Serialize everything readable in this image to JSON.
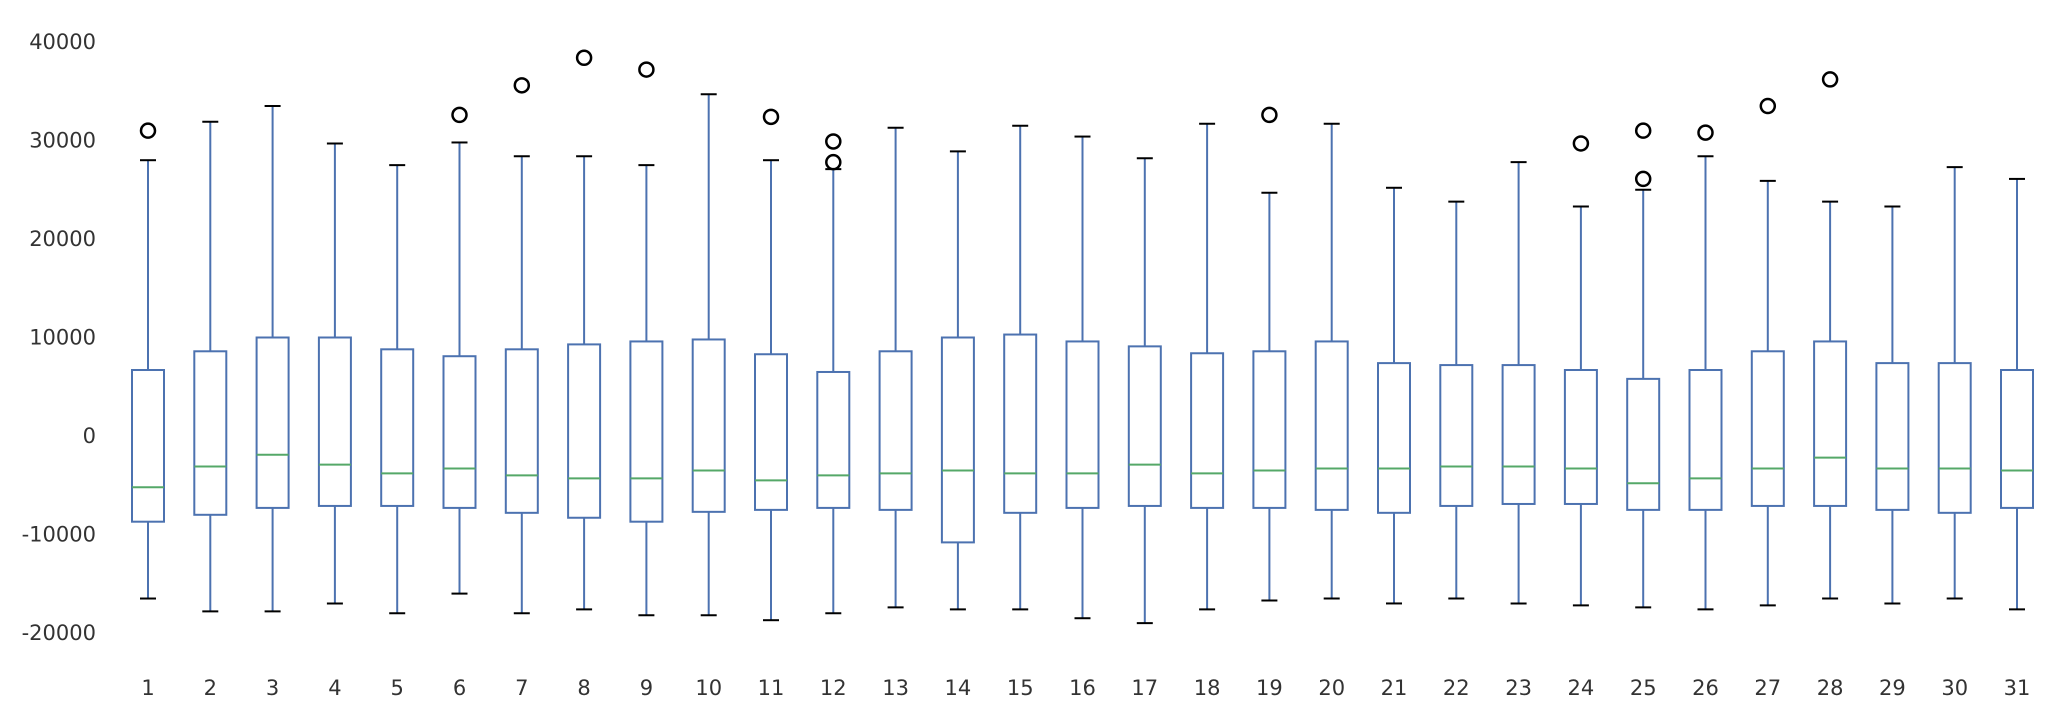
{
  "chart_data": {
    "type": "box",
    "title": "",
    "xlabel": "",
    "ylabel": "",
    "grid": false,
    "ylim": [
      -25000,
      42000
    ],
    "yticks": [
      -20000,
      -10000,
      0,
      10000,
      20000,
      30000,
      40000
    ],
    "ytick_labels": [
      "-20000",
      "-10000",
      "0",
      "10000",
      "20000",
      "30000",
      "40000"
    ],
    "categories": [
      "1",
      "2",
      "3",
      "4",
      "5",
      "6",
      "7",
      "8",
      "9",
      "10",
      "11",
      "12",
      "13",
      "14",
      "15",
      "16",
      "17",
      "18",
      "19",
      "20",
      "21",
      "22",
      "23",
      "24",
      "25",
      "26",
      "27",
      "28",
      "29",
      "30",
      "31"
    ],
    "colors": {
      "box": "#4c72b0",
      "median": "#55a868",
      "cap": "#000000",
      "flier": "#000000"
    },
    "boxes": [
      {
        "whislo": -16500,
        "q1": -8700,
        "med": -5200,
        "q3": 6700,
        "whishi": 28000,
        "fliers": [
          31000
        ]
      },
      {
        "whislo": -17800,
        "q1": -8000,
        "med": -3100,
        "q3": 8600,
        "whishi": 31900,
        "fliers": []
      },
      {
        "whislo": -17800,
        "q1": -7300,
        "med": -1900,
        "q3": 10000,
        "whishi": 33500,
        "fliers": []
      },
      {
        "whislo": -17000,
        "q1": -7100,
        "med": -2900,
        "q3": 10000,
        "whishi": 29700,
        "fliers": []
      },
      {
        "whislo": -18000,
        "q1": -7100,
        "med": -3800,
        "q3": 8800,
        "whishi": 27500,
        "fliers": []
      },
      {
        "whislo": -16000,
        "q1": -7300,
        "med": -3300,
        "q3": 8100,
        "whishi": 29800,
        "fliers": [
          32600
        ]
      },
      {
        "whislo": -18000,
        "q1": -7800,
        "med": -4000,
        "q3": 8800,
        "whishi": 28400,
        "fliers": [
          35600
        ]
      },
      {
        "whislo": -17600,
        "q1": -8300,
        "med": -4300,
        "q3": 9300,
        "whishi": 28400,
        "fliers": [
          38400
        ]
      },
      {
        "whislo": -18200,
        "q1": -8700,
        "med": -4300,
        "q3": 9600,
        "whishi": 27500,
        "fliers": [
          37200
        ]
      },
      {
        "whislo": -18200,
        "q1": -7700,
        "med": -3500,
        "q3": 9800,
        "whishi": 34700,
        "fliers": []
      },
      {
        "whislo": -18700,
        "q1": -7500,
        "med": -4500,
        "q3": 8300,
        "whishi": 28000,
        "fliers": [
          32400
        ]
      },
      {
        "whislo": -18000,
        "q1": -7300,
        "med": -4000,
        "q3": 6500,
        "whishi": 27100,
        "fliers": [
          27800,
          29900
        ]
      },
      {
        "whislo": -17400,
        "q1": -7500,
        "med": -3800,
        "q3": 8600,
        "whishi": 31300,
        "fliers": []
      },
      {
        "whislo": -17600,
        "q1": -10800,
        "med": -3500,
        "q3": 10000,
        "whishi": 28900,
        "fliers": []
      },
      {
        "whislo": -17600,
        "q1": -7800,
        "med": -3800,
        "q3": 10300,
        "whishi": 31500,
        "fliers": []
      },
      {
        "whislo": -18500,
        "q1": -7300,
        "med": -3800,
        "q3": 9600,
        "whishi": 30400,
        "fliers": []
      },
      {
        "whislo": -19000,
        "q1": -7100,
        "med": -2900,
        "q3": 9100,
        "whishi": 28200,
        "fliers": []
      },
      {
        "whislo": -17600,
        "q1": -7300,
        "med": -3800,
        "q3": 8400,
        "whishi": 31700,
        "fliers": []
      },
      {
        "whislo": -16700,
        "q1": -7300,
        "med": -3500,
        "q3": 8600,
        "whishi": 24700,
        "fliers": [
          32600
        ]
      },
      {
        "whislo": -16500,
        "q1": -7500,
        "med": -3300,
        "q3": 9600,
        "whishi": 31700,
        "fliers": []
      },
      {
        "whislo": -17000,
        "q1": -7800,
        "med": -3300,
        "q3": 7400,
        "whishi": 25200,
        "fliers": []
      },
      {
        "whislo": -16500,
        "q1": -7100,
        "med": -3100,
        "q3": 7200,
        "whishi": 23800,
        "fliers": []
      },
      {
        "whislo": -17000,
        "q1": -6900,
        "med": -3100,
        "q3": 7200,
        "whishi": 27800,
        "fliers": []
      },
      {
        "whislo": -17200,
        "q1": -6900,
        "med": -3300,
        "q3": 6700,
        "whishi": 23300,
        "fliers": [
          29700
        ]
      },
      {
        "whislo": -17400,
        "q1": -7500,
        "med": -4800,
        "q3": 5800,
        "whishi": 25000,
        "fliers": [
          26100,
          31000
        ]
      },
      {
        "whislo": -17600,
        "q1": -7500,
        "med": -4300,
        "q3": 6700,
        "whishi": 28400,
        "fliers": [
          30800
        ]
      },
      {
        "whislo": -17200,
        "q1": -7100,
        "med": -3300,
        "q3": 8600,
        "whishi": 25900,
        "fliers": [
          33500
        ]
      },
      {
        "whislo": -16500,
        "q1": -7100,
        "med": -2200,
        "q3": 9600,
        "whishi": 23800,
        "fliers": [
          36200
        ]
      },
      {
        "whislo": -17000,
        "q1": -7500,
        "med": -3300,
        "q3": 7400,
        "whishi": 23300,
        "fliers": []
      },
      {
        "whislo": -16500,
        "q1": -7800,
        "med": -3300,
        "q3": 7400,
        "whishi": 27300,
        "fliers": []
      },
      {
        "whislo": -17600,
        "q1": -7300,
        "med": -3500,
        "q3": 6700,
        "whishi": 26100,
        "fliers": []
      }
    ]
  }
}
